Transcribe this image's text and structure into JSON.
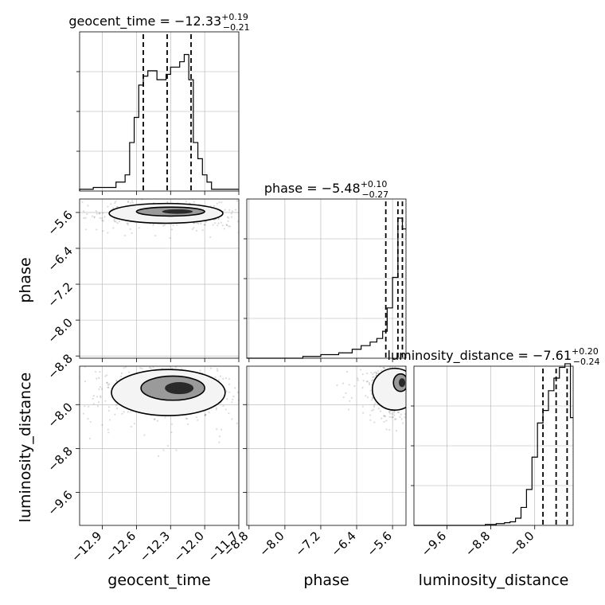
{
  "chart_data": {
    "type": "corner",
    "grid": true,
    "parameters": [
      {
        "name": "geocent_time",
        "axis_label": "geocent_time",
        "title": {
          "prefix": "geocent_time = −12.33",
          "plus": "+0.19",
          "minus": "−0.21"
        },
        "median": -12.33,
        "q16": -12.54,
        "q84": -12.12,
        "range": [
          -13.1,
          -11.7
        ],
        "ticks": [
          -12.9,
          -12.6,
          -12.3,
          -12.0,
          -11.7
        ],
        "tick_labels": [
          "−12.9",
          "−12.6",
          "−12.3",
          "−12.0",
          "−11.7"
        ],
        "hist_bins": [
          -13.1,
          -12.98,
          -12.78,
          -12.7,
          -12.66,
          -12.62,
          -12.58,
          -12.54,
          -12.5,
          -12.42,
          -12.34,
          -12.3,
          -12.22,
          -12.18,
          -12.14,
          -12.1,
          -12.06,
          -12.02,
          -11.98,
          -11.94,
          -11.7
        ],
        "hist_counts": [
          0.01,
          0.02,
          0.05,
          0.09,
          0.27,
          0.41,
          0.59,
          0.64,
          0.67,
          0.62,
          0.65,
          0.69,
          0.72,
          0.76,
          0.62,
          0.27,
          0.18,
          0.09,
          0.05,
          0.01
        ]
      },
      {
        "name": "phase",
        "axis_label": "phase",
        "title": {
          "prefix": "phase = −5.48",
          "plus": "+0.10",
          "minus": "−0.27"
        },
        "median": -5.48,
        "q16": -5.75,
        "q84": -5.38,
        "range": [
          -8.85,
          -5.3
        ],
        "ticks": [
          -8.8,
          -8.0,
          -7.2,
          -6.4,
          -5.6
        ],
        "tick_labels": [
          "−8.8",
          "−8.0",
          "−7.2",
          "−6.4",
          "−5.6"
        ],
        "hist_bins": [
          -8.85,
          -7.6,
          -7.2,
          -6.8,
          -6.5,
          -6.3,
          -6.1,
          -5.95,
          -5.82,
          -5.72,
          -5.6,
          -5.48,
          -5.38,
          -5.3
        ],
        "hist_counts": [
          0.0,
          0.01,
          0.02,
          0.03,
          0.05,
          0.07,
          0.09,
          0.11,
          0.15,
          0.28,
          0.45,
          0.78,
          0.72
        ]
      },
      {
        "name": "luminosity_distance",
        "axis_label": "luminosity_distance",
        "title": {
          "prefix": "luminosity_distance = −7.61",
          "plus": "+0.20",
          "minus": "−0.24"
        },
        "median": -7.61,
        "q16": -7.85,
        "q84": -7.41,
        "range": [
          -10.2,
          -7.3
        ],
        "ticks": [
          -9.6,
          -8.8,
          -8.0
        ],
        "tick_labels": [
          "−9.6",
          "−8.8",
          "−8.0"
        ],
        "hist_bins": [
          -10.2,
          -8.9,
          -8.7,
          -8.55,
          -8.45,
          -8.35,
          -8.25,
          -8.15,
          -8.05,
          -7.95,
          -7.85,
          -7.75,
          -7.65,
          -7.55,
          -7.45,
          -7.35,
          -7.3
        ],
        "hist_counts": [
          0.0,
          0.005,
          0.01,
          0.015,
          0.02,
          0.04,
          0.1,
          0.2,
          0.38,
          0.57,
          0.64,
          0.75,
          0.82,
          0.88,
          0.9,
          0.6
        ]
      }
    ],
    "scatter_density": [
      {
        "x": "geocent_time",
        "y": "phase",
        "contours": [
          {
            "level": "outer",
            "cx": -12.34,
            "cy": -5.62,
            "rx": 0.5,
            "ry": 0.22
          },
          {
            "level": "inner",
            "cx": -12.3,
            "cy": -5.58,
            "rx": 0.3,
            "ry": 0.1
          }
        ]
      },
      {
        "x": "geocent_time",
        "y": "luminosity_distance",
        "contours": [
          {
            "level": "outer",
            "cx": -12.32,
            "cy": -7.78,
            "rx": 0.5,
            "ry": 0.42
          },
          {
            "level": "inner",
            "cx": -12.28,
            "cy": -7.7,
            "rx": 0.28,
            "ry": 0.22
          }
        ]
      },
      {
        "x": "phase",
        "y": "luminosity_distance",
        "contours": [
          {
            "level": "outer",
            "cx": -5.55,
            "cy": -7.72,
            "rx": 0.5,
            "ry": 0.38
          },
          {
            "level": "inner",
            "cx": -5.42,
            "cy": -7.6,
            "rx": 0.16,
            "ry": 0.16
          }
        ]
      }
    ]
  }
}
